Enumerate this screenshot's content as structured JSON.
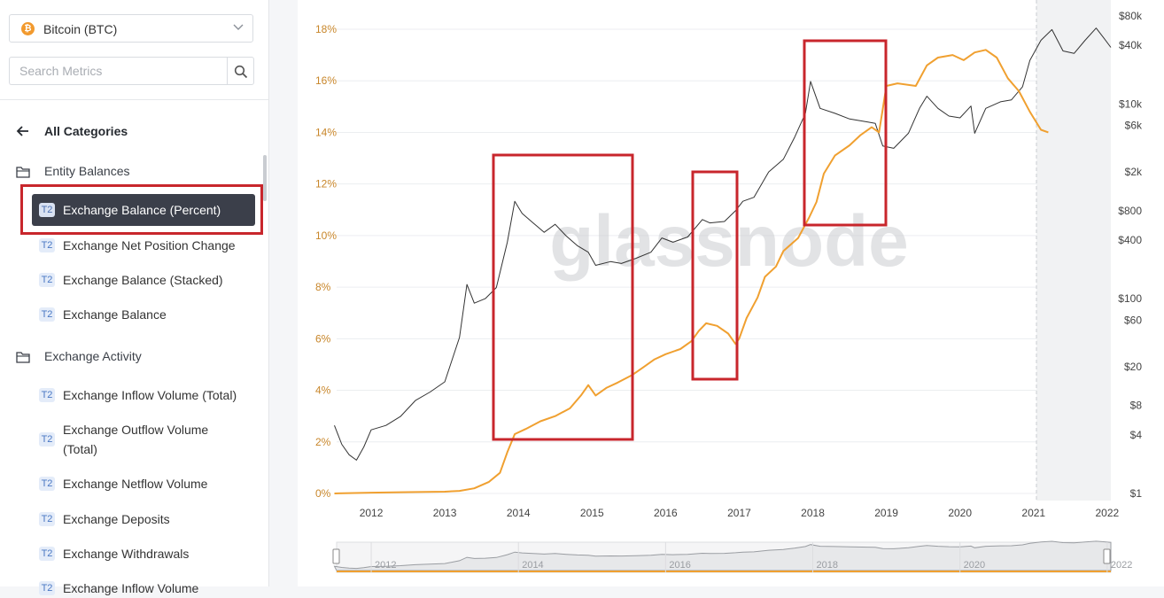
{
  "sidebar": {
    "asset": {
      "label": "Bitcoin (BTC)",
      "icon": "bitcoin-icon"
    },
    "search": {
      "placeholder": "Search Metrics"
    },
    "back_label": "All Categories",
    "categories": [
      {
        "label": "Entity Balances",
        "items": [
          {
            "badge": "T2",
            "label": "Exchange Balance (Percent)",
            "active": true
          },
          {
            "badge": "T2",
            "label": "Exchange Net Position Change"
          },
          {
            "badge": "T2",
            "label": "Exchange Balance (Stacked)"
          },
          {
            "badge": "T2",
            "label": "Exchange Balance"
          }
        ]
      },
      {
        "label": "Exchange Activity",
        "items": [
          {
            "badge": "T2",
            "label": "Exchange Inflow Volume (Total)"
          },
          {
            "badge": "T2",
            "label": "Exchange Outflow Volume (Total)"
          },
          {
            "badge": "T2",
            "label": "Exchange Netflow Volume"
          },
          {
            "badge": "T2",
            "label": "Exchange Deposits"
          },
          {
            "badge": "T2",
            "label": "Exchange Withdrawals"
          },
          {
            "badge": "T2",
            "label": "Exchange Inflow Volume"
          }
        ]
      }
    ]
  },
  "chart": {
    "watermark": "glassnode"
  },
  "chart_data": {
    "type": "line",
    "x_ticks": [
      "2012",
      "2013",
      "2014",
      "2015",
      "2016",
      "2017",
      "2018",
      "2019",
      "2020",
      "2021",
      "2022"
    ],
    "y_left_ticks": [
      "18%",
      "16%",
      "14%",
      "12%",
      "10%",
      "8%",
      "6%",
      "4%",
      "2%",
      "0%"
    ],
    "y_left_range": [
      0,
      18
    ],
    "y_right_ticks": [
      "$80k",
      "$40k",
      "$10k",
      "$6k",
      "$2k",
      "$800",
      "$400",
      "$100",
      "$60",
      "$20",
      "$8",
      "$4",
      "$1"
    ],
    "y_right_scale": "log",
    "y_right_range": [
      1,
      80000
    ],
    "navigator_ticks": [
      "2012",
      "2014",
      "2016",
      "2018",
      "2020",
      "2022"
    ],
    "colors": {
      "balance": "#f0a030",
      "price": "#333333",
      "left_axis": "#c8862a",
      "highlight": "#c8262c"
    },
    "series": [
      {
        "axis": "left",
        "points": [
          [
            2011.5,
            0.0
          ],
          [
            2012.0,
            0.03
          ],
          [
            2012.5,
            0.05
          ],
          [
            2013.0,
            0.07
          ],
          [
            2013.2,
            0.1
          ],
          [
            2013.4,
            0.2
          ],
          [
            2013.6,
            0.45
          ],
          [
            2013.75,
            0.8
          ],
          [
            2013.85,
            1.6
          ],
          [
            2013.95,
            2.3
          ],
          [
            2014.1,
            2.5
          ],
          [
            2014.3,
            2.8
          ],
          [
            2014.5,
            3.0
          ],
          [
            2014.7,
            3.3
          ],
          [
            2014.85,
            3.8
          ],
          [
            2014.95,
            4.2
          ],
          [
            2015.05,
            3.8
          ],
          [
            2015.2,
            4.1
          ],
          [
            2015.35,
            4.3
          ],
          [
            2015.55,
            4.6
          ],
          [
            2015.7,
            4.9
          ],
          [
            2015.85,
            5.2
          ],
          [
            2016.0,
            5.4
          ],
          [
            2016.2,
            5.6
          ],
          [
            2016.35,
            5.9
          ],
          [
            2016.45,
            6.3
          ],
          [
            2016.55,
            6.6
          ],
          [
            2016.7,
            6.5
          ],
          [
            2016.85,
            6.2
          ],
          [
            2016.95,
            5.8
          ],
          [
            2017.0,
            6.0
          ],
          [
            2017.1,
            6.8
          ],
          [
            2017.25,
            7.6
          ],
          [
            2017.35,
            8.4
          ],
          [
            2017.5,
            8.8
          ],
          [
            2017.6,
            9.4
          ],
          [
            2017.8,
            9.9
          ],
          [
            2017.95,
            10.7
          ],
          [
            2018.05,
            11.3
          ],
          [
            2018.15,
            12.4
          ],
          [
            2018.3,
            13.1
          ],
          [
            2018.5,
            13.5
          ],
          [
            2018.65,
            13.9
          ],
          [
            2018.8,
            14.2
          ],
          [
            2018.9,
            14.0
          ],
          [
            2018.95,
            14.9
          ],
          [
            2019.0,
            15.8
          ],
          [
            2019.15,
            15.9
          ],
          [
            2019.4,
            15.8
          ],
          [
            2019.55,
            16.6
          ],
          [
            2019.7,
            16.9
          ],
          [
            2019.9,
            17.0
          ],
          [
            2020.05,
            16.8
          ],
          [
            2020.2,
            17.1
          ],
          [
            2020.35,
            17.2
          ],
          [
            2020.5,
            16.9
          ],
          [
            2020.65,
            16.1
          ],
          [
            2020.8,
            15.6
          ],
          [
            2020.95,
            14.8
          ],
          [
            2021.1,
            14.1
          ],
          [
            2021.2,
            14.0
          ]
        ]
      },
      {
        "axis": "right",
        "points": [
          [
            2011.5,
            5.0
          ],
          [
            2011.6,
            3.2
          ],
          [
            2011.7,
            2.5
          ],
          [
            2011.8,
            2.2
          ],
          [
            2011.9,
            3.0
          ],
          [
            2012.0,
            4.5
          ],
          [
            2012.2,
            5.0
          ],
          [
            2012.4,
            6.2
          ],
          [
            2012.6,
            9.0
          ],
          [
            2012.8,
            11.0
          ],
          [
            2013.0,
            14
          ],
          [
            2013.2,
            40
          ],
          [
            2013.3,
            140
          ],
          [
            2013.4,
            90
          ],
          [
            2013.55,
            100
          ],
          [
            2013.7,
            130
          ],
          [
            2013.85,
            380
          ],
          [
            2013.95,
            1000
          ],
          [
            2014.05,
            750
          ],
          [
            2014.2,
            600
          ],
          [
            2014.35,
            480
          ],
          [
            2014.5,
            580
          ],
          [
            2014.65,
            440
          ],
          [
            2014.8,
            350
          ],
          [
            2014.95,
            300
          ],
          [
            2015.05,
            220
          ],
          [
            2015.25,
            240
          ],
          [
            2015.4,
            230
          ],
          [
            2015.6,
            260
          ],
          [
            2015.8,
            300
          ],
          [
            2015.95,
            420
          ],
          [
            2016.1,
            380
          ],
          [
            2016.3,
            430
          ],
          [
            2016.5,
            650
          ],
          [
            2016.6,
            600
          ],
          [
            2016.8,
            620
          ],
          [
            2016.95,
            800
          ],
          [
            2017.05,
            1000
          ],
          [
            2017.2,
            1100
          ],
          [
            2017.4,
            2000
          ],
          [
            2017.6,
            2700
          ],
          [
            2017.75,
            4500
          ],
          [
            2017.9,
            8000
          ],
          [
            2017.97,
            17000
          ],
          [
            2018.1,
            9000
          ],
          [
            2018.3,
            8000
          ],
          [
            2018.5,
            7000
          ],
          [
            2018.75,
            6500
          ],
          [
            2018.85,
            6300
          ],
          [
            2018.95,
            3700
          ],
          [
            2019.1,
            3500
          ],
          [
            2019.3,
            5000
          ],
          [
            2019.45,
            9000
          ],
          [
            2019.55,
            12000
          ],
          [
            2019.7,
            9000
          ],
          [
            2019.85,
            7500
          ],
          [
            2020.0,
            7200
          ],
          [
            2020.15,
            9500
          ],
          [
            2020.2,
            5000
          ],
          [
            2020.35,
            9000
          ],
          [
            2020.55,
            10500
          ],
          [
            2020.7,
            11000
          ],
          [
            2020.85,
            15000
          ],
          [
            2020.95,
            28000
          ],
          [
            2021.1,
            45000
          ],
          [
            2021.25,
            58000
          ],
          [
            2021.4,
            35000
          ],
          [
            2021.55,
            33000
          ],
          [
            2021.7,
            45000
          ],
          [
            2021.85,
            60000
          ],
          [
            2021.95,
            48000
          ],
          [
            2022.05,
            38000
          ]
        ]
      }
    ]
  }
}
